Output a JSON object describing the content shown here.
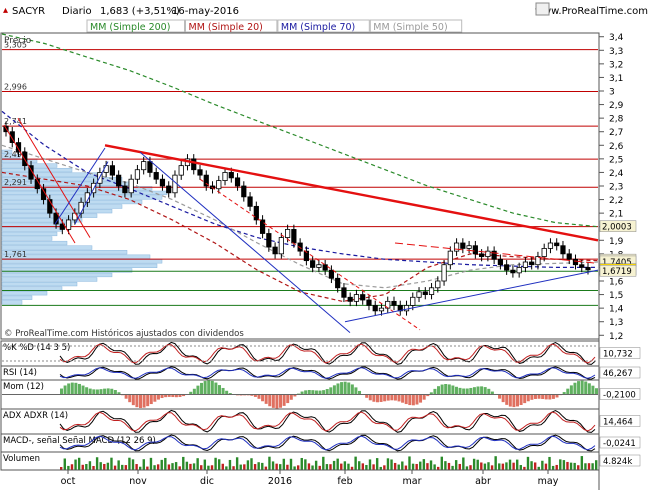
{
  "header": {
    "symbol": "SACYR",
    "period": "Diario",
    "quote": "1,683 (+3,51%)",
    "date": "16-may-2016",
    "brand": "www.ProRealTime.com"
  },
  "legend": [
    {
      "label": "MM (Simple 200)",
      "color": "#2a8a2a"
    },
    {
      "label": "MM (Simple 20)",
      "color": "#b01515"
    },
    {
      "label": "MM (Simple 70)",
      "color": "#1a1aa0"
    },
    {
      "label": "MM (Simple 50)",
      "color": "#9a9a9a"
    }
  ],
  "price_panel": {
    "title": "Precio",
    "footer": "© ProRealTime.com  Históricos ajustados con dividendos"
  },
  "level_labels": [
    "3,305",
    "2,996",
    "2,741",
    "2,498",
    "2,291",
    "1,761"
  ],
  "price_tags": [
    "2,0003",
    "1,7537",
    "1,7405",
    "1,683",
    "1,6719"
  ],
  "panels": [
    {
      "key": "stoch",
      "label": "%K  %D (14 3 5)",
      "value": "10,732"
    },
    {
      "key": "rsi",
      "label": "RSI (14)",
      "value": "46,267"
    },
    {
      "key": "mom",
      "label": "Mom (12)",
      "value": "-0,2100"
    },
    {
      "key": "adx",
      "label": "ADX  ADXR (14)",
      "value": "14,464"
    },
    {
      "key": "macd",
      "label": "MACD-, señal  Señal  MACD (12 26 9)",
      "value": "-0,0241"
    },
    {
      "key": "vol",
      "label": "Volumen",
      "value": "4.824k"
    }
  ],
  "chart_data": {
    "type": "line",
    "title": "SACYR  Diario",
    "ylim": [
      1.18,
      3.42
    ],
    "y_ticks": [
      "3,4",
      "3,3",
      "3,2",
      "3,1",
      "3",
      "2,9",
      "2,8",
      "2,7",
      "2,6",
      "2,5",
      "2,4",
      "2,3",
      "2,2",
      "2,1",
      "2",
      "1,9",
      "1,8",
      "1,7",
      "1,6",
      "1,5",
      "1,4",
      "1,3",
      "1,2"
    ],
    "x_ticks": [
      "oct",
      "nov",
      "dic",
      "2016",
      "feb",
      "mar",
      "abr",
      "may"
    ],
    "support_resistance_levels": [
      3.305,
      2.996,
      2.741,
      2.498,
      2.291,
      2.0003,
      1.761
    ],
    "close_series_approx": [
      2.7,
      2.62,
      2.55,
      2.45,
      2.35,
      2.28,
      2.2,
      2.1,
      2.02,
      1.98,
      2.05,
      2.1,
      2.18,
      2.25,
      2.32,
      2.4,
      2.45,
      2.38,
      2.3,
      2.25,
      2.35,
      2.42,
      2.48,
      2.4,
      2.35,
      2.3,
      2.25,
      2.38,
      2.45,
      2.5,
      2.42,
      2.38,
      2.3,
      2.28,
      2.34,
      2.4,
      2.36,
      2.3,
      2.22,
      2.15,
      2.05,
      1.95,
      1.85,
      1.8,
      1.92,
      1.98,
      1.88,
      1.82,
      1.75,
      1.7,
      1.72,
      1.68,
      1.62,
      1.55,
      1.48,
      1.45,
      1.5,
      1.46,
      1.42,
      1.38,
      1.4,
      1.45,
      1.42,
      1.38,
      1.42,
      1.48,
      1.52,
      1.5,
      1.55,
      1.6,
      1.72,
      1.82,
      1.88,
      1.84,
      1.86,
      1.8,
      1.78,
      1.82,
      1.76,
      1.72,
      1.68,
      1.66,
      1.7,
      1.74,
      1.72,
      1.78,
      1.84,
      1.88,
      1.86,
      1.8,
      1.76,
      1.72,
      1.7,
      1.683
    ],
    "series": [
      {
        "name": "MM (Simple 200)",
        "values_approx": [
          3.42,
          3.35,
          3.25,
          3.15,
          3.03,
          2.9,
          2.78,
          2.66,
          2.54,
          2.42,
          2.3,
          2.2,
          2.1,
          2.03,
          2.0
        ]
      },
      {
        "name": "MM (Simple 70)",
        "values_approx": [
          2.85,
          2.6,
          2.4,
          2.28,
          2.15,
          2.02,
          1.92,
          1.85,
          1.8,
          1.76,
          1.74,
          1.72,
          1.71,
          1.7,
          1.7
        ]
      },
      {
        "name": "MM (Simple 50)",
        "values_approx": [
          2.6,
          2.5,
          2.4,
          2.32,
          2.2,
          2.05,
          1.88,
          1.72,
          1.58,
          1.55,
          1.6,
          1.68,
          1.72,
          1.73,
          1.74
        ]
      },
      {
        "name": "MM (Simple 20)",
        "values_approx": [
          2.4,
          2.35,
          2.3,
          2.2,
          2.05,
          1.88,
          1.68,
          1.52,
          1.45,
          1.5,
          1.7,
          1.8,
          1.78,
          1.76,
          1.75
        ]
      }
    ]
  }
}
